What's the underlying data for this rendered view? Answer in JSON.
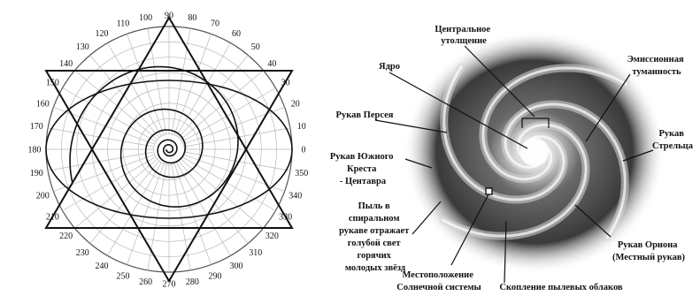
{
  "polar": {
    "angle_labels": [
      "0",
      "10",
      "20",
      "30",
      "40",
      "50",
      "60",
      "70",
      "80",
      "90",
      "100",
      "110",
      "120",
      "130",
      "140",
      "150",
      "160",
      "170",
      "180",
      "190",
      "200",
      "210",
      "220",
      "230",
      "240",
      "250",
      "260",
      "270",
      "280",
      "290",
      "300",
      "310",
      "320",
      "330",
      "340",
      "350"
    ]
  },
  "galaxy": {
    "labels": {
      "center_bulge": [
        "Центральное",
        "утолщение"
      ],
      "nucleus": [
        "Ядро"
      ],
      "perseus_arm": [
        "Рукав Персея"
      ],
      "southern_cross_arm": [
        "Рукав Южного",
        "Креста",
        "- Центавра"
      ],
      "dust": [
        "Пыль в",
        "спиральном",
        "рукаве отражает",
        "голубой свет",
        "горячих",
        "молодых звёзд"
      ],
      "sun_location": [
        "Местоположение",
        "Солнечной системы"
      ],
      "dust_clouds": [
        "Скопление пылевых облаков"
      ],
      "orion_arm": [
        "Рукав Ориона",
        "(Местный рукав)"
      ],
      "sagittarius_arm": [
        "Рукав",
        "Стрельца"
      ],
      "emission_nebula": [
        "Эмиссионная",
        "туманность"
      ]
    }
  },
  "colors": {
    "ink": "#111111",
    "grid": "#b8b8b8",
    "galaxy_bg": "#2a2a2a",
    "arm": "#d8d8d8"
  }
}
